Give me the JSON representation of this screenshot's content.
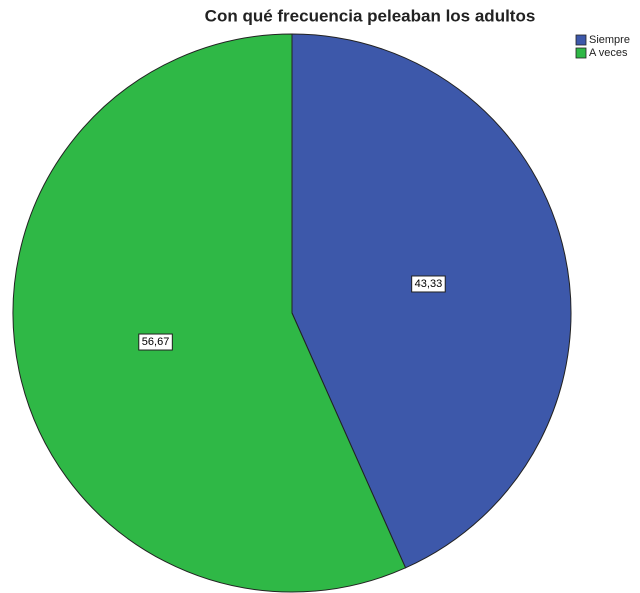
{
  "chart_data": {
    "type": "pie",
    "title": "Con qué frecuencia peleaban los adultos",
    "categories": [
      "Siempre",
      "A veces"
    ],
    "values": [
      43.33,
      56.67
    ],
    "value_labels": [
      "43,33",
      "56,67"
    ],
    "colors": [
      "#3d58aa",
      "#2fb846"
    ]
  }
}
